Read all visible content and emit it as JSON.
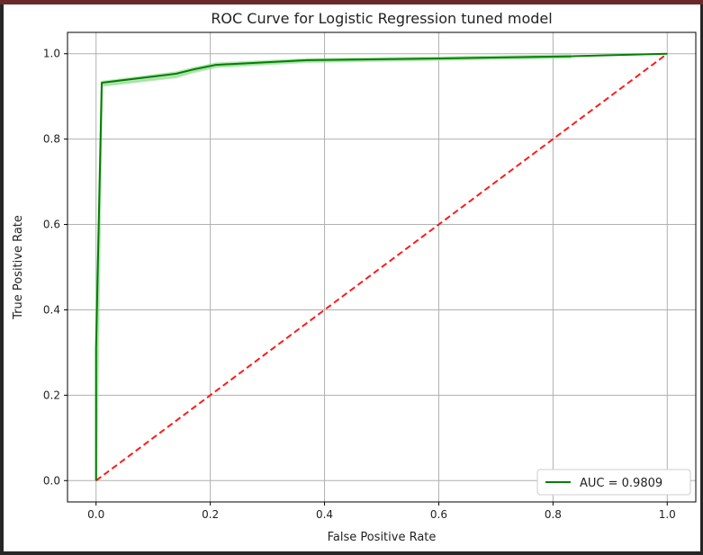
{
  "chart_data": {
    "type": "line",
    "title": "ROC Curve for Logistic Regression tuned model",
    "xlabel": "False Positive Rate",
    "ylabel": "True Positive Rate",
    "xlim": [
      -0.05,
      1.05
    ],
    "ylim": [
      -0.05,
      1.05
    ],
    "xticks": [
      0.0,
      0.2,
      0.4,
      0.6,
      0.8,
      1.0
    ],
    "yticks": [
      0.0,
      0.2,
      0.4,
      0.6,
      0.8,
      1.0
    ],
    "xtick_labels": [
      "0.0",
      "0.2",
      "0.4",
      "0.6",
      "0.8",
      "1.0"
    ],
    "ytick_labels": [
      "0.0",
      "0.2",
      "0.4",
      "0.6",
      "0.8",
      "1.0"
    ],
    "grid": true,
    "legend_position": "lower-right",
    "series": [
      {
        "name": "AUC = 0.9809",
        "color": "#008000",
        "style": "solid",
        "x": [
          0.0,
          0.0,
          0.01,
          0.14,
          0.17,
          0.21,
          0.37,
          0.6,
          0.83,
          1.0
        ],
        "y": [
          0.0,
          0.31,
          0.932,
          0.953,
          0.963,
          0.974,
          0.985,
          0.989,
          0.994,
          1.0
        ]
      },
      {
        "name": "",
        "color": "#ff0000",
        "style": "dashed",
        "x": [
          0.0,
          1.0
        ],
        "y": [
          0.0,
          1.0
        ]
      }
    ],
    "confidence_band": {
      "color": "#90d890",
      "x": [
        0.0,
        0.0,
        0.01,
        0.14,
        0.17,
        0.21,
        0.37,
        0.6,
        0.83
      ],
      "y_low": [
        0.0,
        0.0,
        0.925,
        0.945,
        0.957,
        0.969,
        0.981,
        0.986,
        0.991
      ],
      "y_high": [
        0.0,
        0.31,
        0.934,
        0.956,
        0.966,
        0.977,
        0.987,
        0.991,
        0.996
      ]
    }
  }
}
